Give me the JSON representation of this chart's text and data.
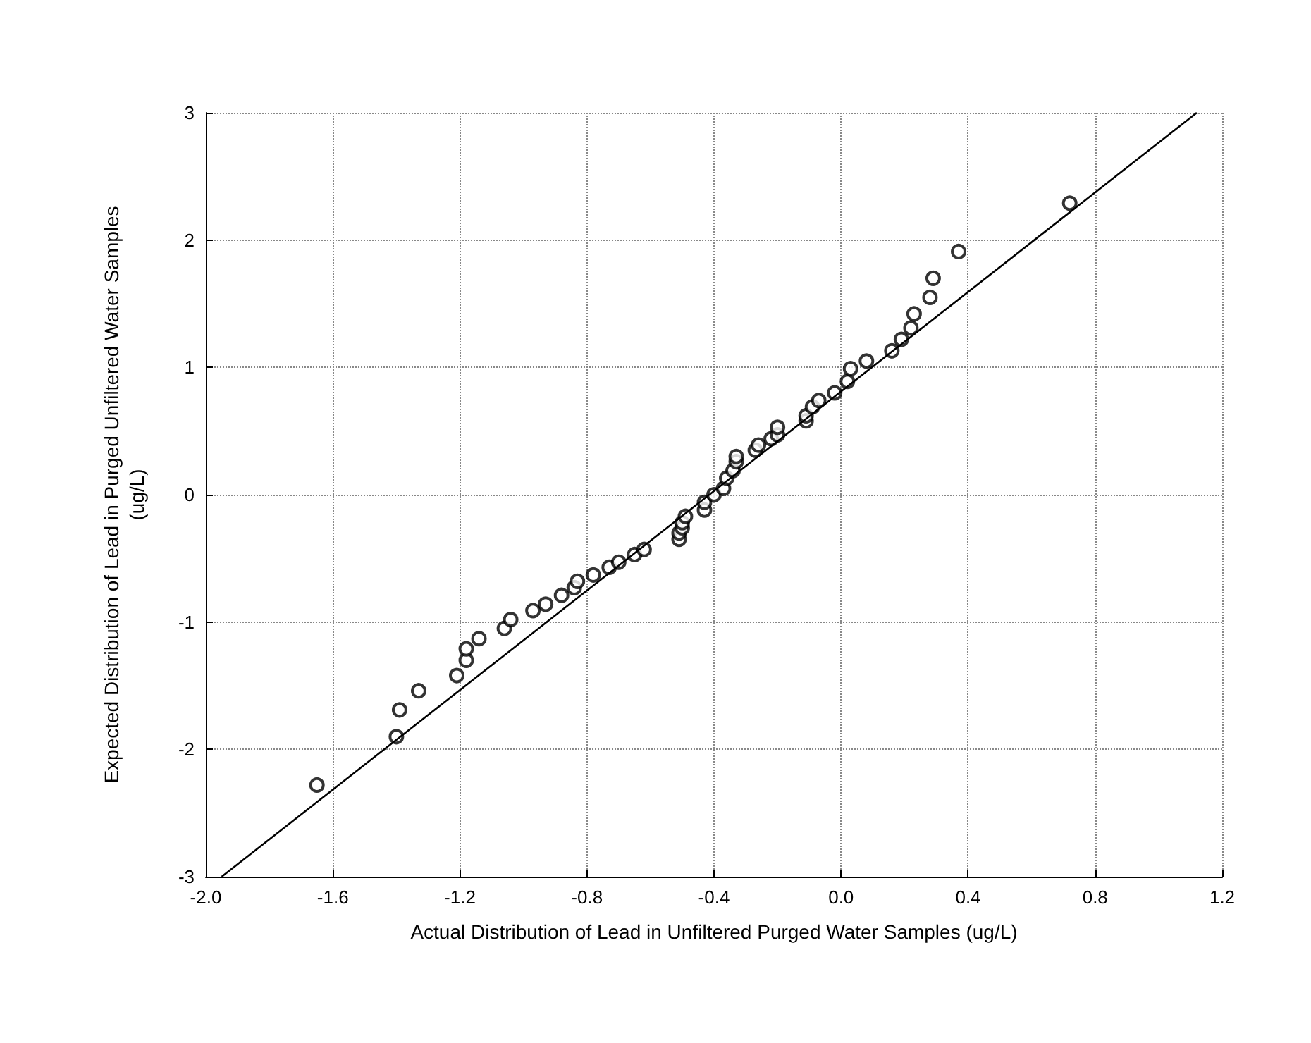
{
  "chart_data": {
    "type": "scatter",
    "xlabel": "Actual Distribution of Lead in Unfiltered Purged Water Samples (ug/L)",
    "ylabel": "Expected Distribution of Lead in Purged Unfiltered Water Samples\n(ug/L)",
    "xlim": [
      -2.0,
      1.2
    ],
    "ylim": [
      -3,
      3
    ],
    "xticks": [
      {
        "value": -2.0,
        "label": "-2.0"
      },
      -1.6,
      -1.2,
      -0.8,
      -0.4,
      {
        "value": 0,
        "label": "0.0"
      },
      0.4,
      0.8,
      1.2
    ],
    "yticks": [
      -3,
      -2,
      -1,
      0,
      1,
      2,
      3
    ],
    "grid": true,
    "marker": "circle",
    "series": [
      {
        "color": "#000000",
        "x": [
          -1.65,
          -1.4,
          -1.39,
          -1.33,
          -1.21,
          -1.18,
          -1.18,
          -1.14,
          -1.06,
          -1.04,
          -0.97,
          -0.93,
          -0.88,
          -0.84,
          -0.83,
          -0.78,
          -0.73,
          -0.7,
          -0.65,
          -0.62,
          -0.51,
          -0.51,
          -0.5,
          -0.5,
          -0.49,
          -0.43,
          -0.43,
          -0.4,
          -0.37,
          -0.36,
          -0.34,
          -0.33,
          -0.33,
          -0.27,
          -0.26,
          -0.22,
          -0.2,
          -0.2,
          -0.11,
          -0.11,
          -0.09,
          -0.07,
          -0.02,
          0.02,
          0.03,
          0.08,
          0.16,
          0.19,
          0.22,
          0.23,
          0.28,
          0.29,
          0.37,
          0.72
        ],
        "values": [
          -2.28,
          -1.9,
          -1.69,
          -1.54,
          -1.42,
          -1.3,
          -1.21,
          -1.13,
          -1.05,
          -0.98,
          -0.91,
          -0.86,
          -0.79,
          -0.73,
          -0.68,
          -0.63,
          -0.57,
          -0.53,
          -0.47,
          -0.43,
          -0.35,
          -0.3,
          -0.26,
          -0.22,
          -0.17,
          -0.12,
          -0.06,
          0.0,
          0.05,
          0.13,
          0.19,
          0.26,
          0.3,
          0.35,
          0.39,
          0.44,
          0.47,
          0.53,
          0.58,
          0.62,
          0.69,
          0.74,
          0.8,
          0.89,
          0.99,
          1.05,
          1.13,
          1.22,
          1.31,
          1.42,
          1.55,
          1.7,
          1.91,
          2.29
        ]
      },
      {
        "type": "line",
        "color": "#000000",
        "marker": "none",
        "line_style": "solid",
        "x": [
          -1.95,
          1.12
        ],
        "values": [
          -3,
          3
        ]
      }
    ]
  }
}
